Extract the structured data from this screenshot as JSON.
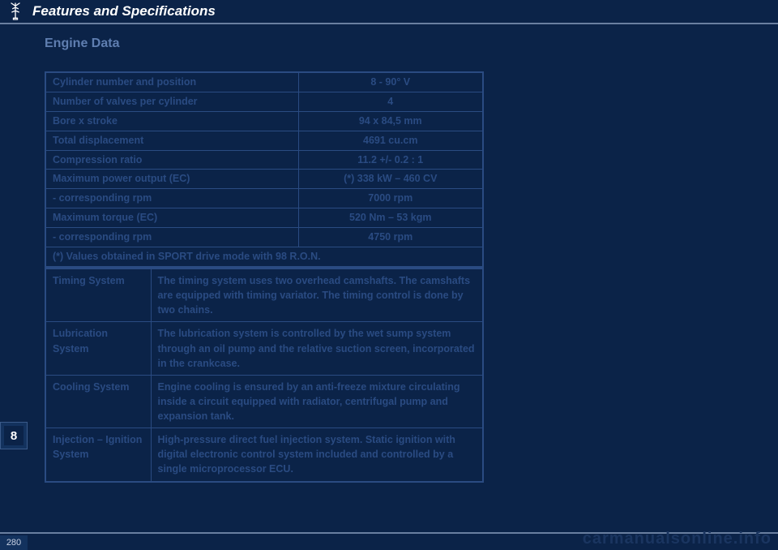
{
  "header": {
    "section_title": "Features and Specifications"
  },
  "subtitle": "Engine Data",
  "specs": {
    "rows": [
      {
        "label": "Cylinder number and position",
        "value": "8 - 90° V"
      },
      {
        "label": "Number of valves per cylinder",
        "value": "4"
      },
      {
        "label": "Bore x stroke",
        "value": "94 x 84,5 mm"
      },
      {
        "label": "Total displacement",
        "value": "4691 cu.cm"
      },
      {
        "label": "Compression ratio",
        "value": "11.2 +/- 0.2 : 1"
      },
      {
        "label": "Maximum power output (EC)",
        "value": "(*) 338 kW – 460 CV"
      },
      {
        "label": "- corresponding rpm",
        "value": "7000 rpm"
      },
      {
        "label": "Maximum torque (EC)",
        "value": "520 Nm – 53 kgm"
      },
      {
        "label": "- corresponding rpm",
        "value": "4750 rpm"
      }
    ],
    "footnote": "(*) Values obtained in SPORT drive mode with 98 R.O.N."
  },
  "systems": {
    "rows": [
      {
        "label": "Timing System",
        "desc": "The timing system uses two overhead camshafts. The camshafts are equipped with timing variator. The timing control is done by two chains."
      },
      {
        "label": "Lubrication System",
        "desc": "The lubrication system is controlled by the wet sump system through an oil pump and the relative suction screen, incorporated in the crankcase."
      },
      {
        "label": "Cooling System",
        "desc": "Engine cooling is ensured by an anti-freeze mixture circulating inside a circuit equipped with radiator, centrifugal pump and expansion tank."
      },
      {
        "label": "Injection – Ignition System",
        "desc": "High-pressure direct fuel injection system. Static ignition with digital electronic control system included and controlled by a single microprocessor ECU."
      }
    ]
  },
  "chapter": "8",
  "page_number": "280",
  "watermark": "carmanualsonline.info"
}
